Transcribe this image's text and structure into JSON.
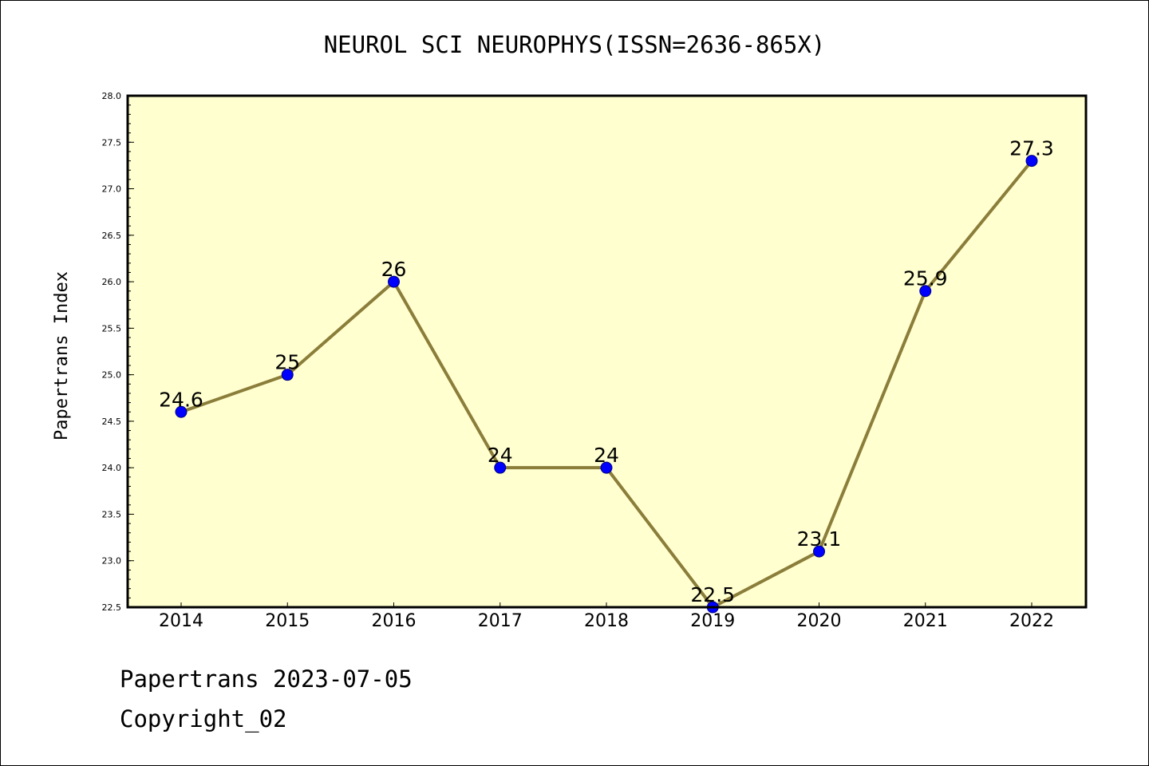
{
  "chart_data": {
    "type": "line",
    "title": "NEUROL SCI NEUROPHYS(ISSN=2636-865X)",
    "xlabel": "",
    "ylabel": "Papertrans Index",
    "categories": [
      "2014",
      "2015",
      "2016",
      "2017",
      "2018",
      "2019",
      "2020",
      "2021",
      "2022"
    ],
    "series": [
      {
        "values": [
          24.6,
          25,
          26,
          24,
          24,
          22.5,
          23.1,
          25.9,
          27.3
        ],
        "data_labels": [
          "24.6",
          "25",
          "26",
          "24",
          "24",
          "22.5",
          "23.1",
          "25.9",
          "27.3"
        ]
      }
    ],
    "ylim": [
      22.5,
      28.0
    ],
    "y_ticks": [
      "22.5",
      "23.0",
      "23.5",
      "24.0",
      "24.5",
      "25.0",
      "25.5",
      "26.0",
      "26.5",
      "27.0",
      "27.5",
      "28.0"
    ],
    "grid": false,
    "colors": {
      "plot_background": "#ffffd0",
      "line": "#8b7d3a",
      "marker": "#0000ff",
      "frame": "#000000"
    }
  },
  "footer": {
    "line1": "Papertrans 2023-07-05",
    "line2": "Copyright_02"
  }
}
